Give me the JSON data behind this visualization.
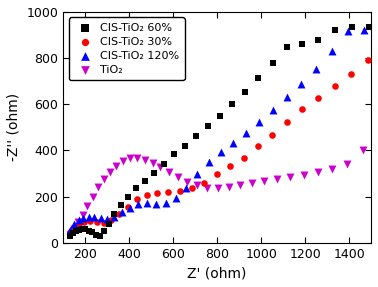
{
  "title": "",
  "xlabel": "Z' (ohm)",
  "ylabel": "-Z'' (ohm)",
  "xlim": [
    100,
    1500
  ],
  "ylim": [
    0,
    1000
  ],
  "xticks": [
    200,
    400,
    600,
    800,
    1000,
    1200,
    1400
  ],
  "yticks": [
    0,
    200,
    400,
    600,
    800,
    1000
  ],
  "series": [
    {
      "label": "CIS-TiO₂ 60%",
      "color": "#000000",
      "marker": "s",
      "markersize": 5,
      "zorder": 4,
      "x": [
        130,
        145,
        158,
        172,
        186,
        200,
        215,
        230,
        248,
        265,
        285,
        308,
        333,
        362,
        394,
        430,
        470,
        512,
        558,
        606,
        656,
        706,
        758,
        812,
        868,
        926,
        988,
        1052,
        1118,
        1186,
        1258,
        1334,
        1412,
        1490
      ],
      "y": [
        28,
        40,
        50,
        56,
        60,
        58,
        52,
        44,
        34,
        30,
        50,
        82,
        122,
        162,
        200,
        238,
        268,
        300,
        340,
        385,
        420,
        462,
        505,
        550,
        600,
        655,
        715,
        778,
        848,
        860,
        880,
        920,
        935,
        935
      ]
    },
    {
      "label": "CIS-TiO₂ 30%",
      "color": "#ff0000",
      "marker": "o",
      "markersize": 5,
      "zorder": 3,
      "x": [
        130,
        150,
        172,
        196,
        222,
        252,
        284,
        318,
        355,
        394,
        436,
        480,
        528,
        578,
        630,
        684,
        740,
        798,
        858,
        920,
        984,
        1050,
        1118,
        1188,
        1260,
        1334,
        1410,
        1488
      ],
      "y": [
        48,
        68,
        80,
        88,
        92,
        88,
        84,
        96,
        122,
        156,
        188,
        208,
        215,
        218,
        222,
        238,
        260,
        296,
        332,
        368,
        418,
        468,
        525,
        580,
        628,
        678,
        730,
        790
      ]
    },
    {
      "label": "CIS-TiO₂ 120%",
      "color": "#0000ff",
      "marker": "^",
      "markersize": 6,
      "zorder": 3,
      "x": [
        130,
        150,
        170,
        192,
        216,
        242,
        270,
        300,
        332,
        366,
        402,
        440,
        480,
        522,
        566,
        612,
        660,
        710,
        762,
        816,
        872,
        930,
        990,
        1052,
        1116,
        1182,
        1250,
        1322,
        1396,
        1470
      ],
      "y": [
        55,
        80,
        98,
        108,
        112,
        110,
        106,
        104,
        112,
        132,
        152,
        166,
        172,
        168,
        170,
        192,
        238,
        296,
        350,
        394,
        434,
        476,
        524,
        574,
        632,
        688,
        752,
        832,
        918,
        920
      ]
    },
    {
      "label": "TiO₂",
      "color": "#cc00cc",
      "marker": "v",
      "markersize": 6,
      "zorder": 2,
      "x": [
        130,
        148,
        168,
        188,
        210,
        234,
        260,
        286,
        314,
        342,
        372,
        404,
        436,
        470,
        506,
        542,
        582,
        622,
        664,
        708,
        754,
        802,
        852,
        904,
        958,
        1014,
        1072,
        1132,
        1194,
        1258,
        1324,
        1392,
        1462
      ],
      "y": [
        32,
        58,
        88,
        120,
        158,
        200,
        242,
        276,
        305,
        332,
        355,
        368,
        368,
        360,
        346,
        328,
        308,
        284,
        264,
        248,
        238,
        238,
        242,
        250,
        260,
        268,
        276,
        284,
        294,
        306,
        318,
        342,
        400
      ]
    }
  ],
  "background_color": "#ffffff",
  "legend_fontsize": 8,
  "axis_fontsize": 10,
  "tick_fontsize": 9
}
